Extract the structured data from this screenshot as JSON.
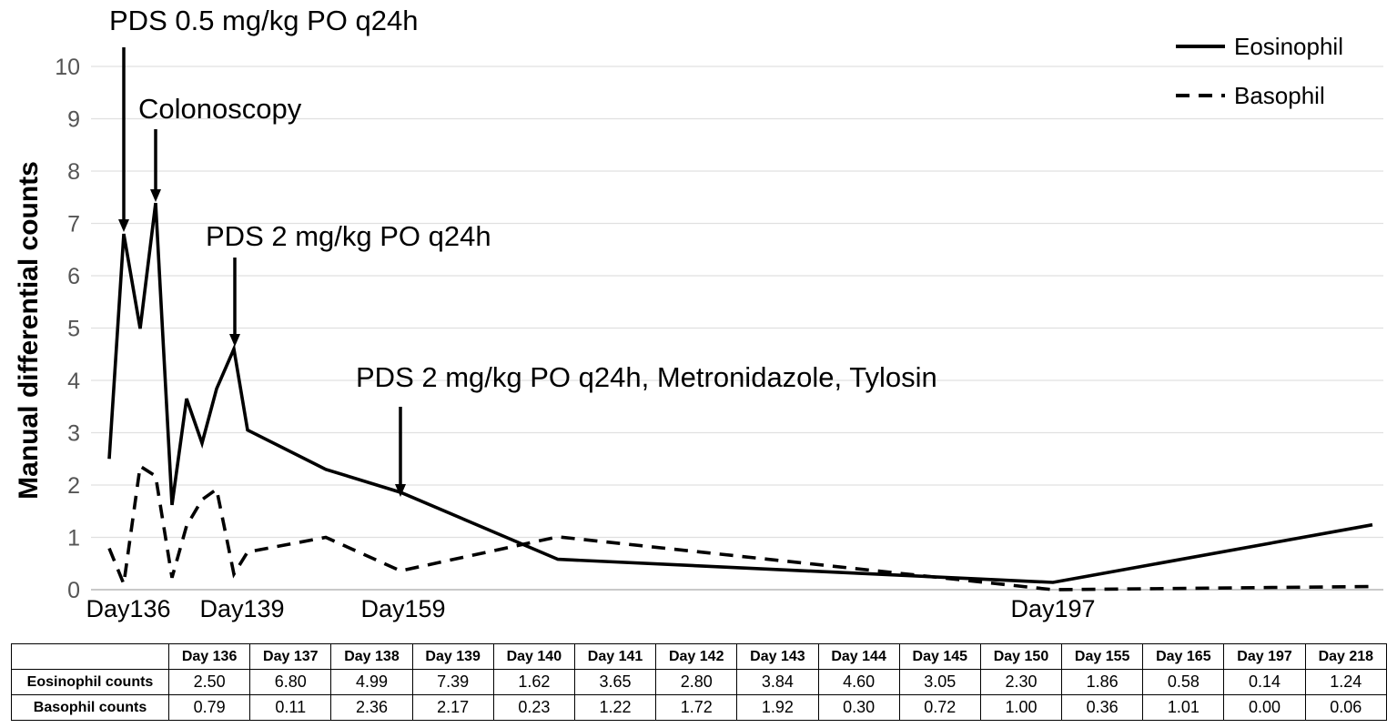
{
  "chart_data": {
    "type": "line",
    "ylabel": "Manual differential counts",
    "ylim": [
      0,
      10
    ],
    "yticks": [
      "0",
      "1",
      "2",
      "3",
      "4",
      "5",
      "6",
      "7",
      "8",
      "9",
      "10"
    ],
    "x_labels": [
      "Day136",
      "Day139",
      "Day159",
      "Day197"
    ],
    "categories": [
      "Day 136",
      "Day 137",
      "Day 138",
      "Day 139",
      "Day 140",
      "Day 141",
      "Day 142",
      "Day 143",
      "Day 144",
      "Day 145",
      "Day 150",
      "Day 155",
      "Day 165",
      "Day 197",
      "Day 218"
    ],
    "series": [
      {
        "name": "Eosinophil",
        "style": "solid",
        "color": "#000000",
        "values": [
          2.5,
          6.8,
          4.99,
          7.39,
          1.62,
          3.65,
          2.8,
          3.84,
          4.6,
          3.05,
          2.3,
          1.86,
          0.58,
          0.14,
          1.24
        ]
      },
      {
        "name": "Basophil",
        "style": "dashed",
        "color": "#000000",
        "values": [
          0.79,
          0.11,
          2.36,
          2.17,
          0.23,
          1.22,
          1.72,
          1.92,
          0.3,
          0.72,
          1.0,
          0.36,
          1.01,
          0.0,
          0.06
        ]
      }
    ],
    "annotations": [
      {
        "text": "PDS 0.5 mg/kg PO q24h",
        "at": "Day 137"
      },
      {
        "text": "Colonoscopy",
        "at": "Day 139"
      },
      {
        "text": "PDS 2 mg/kg PO q24h",
        "at": "Day 144"
      },
      {
        "text": "PDS 2 mg/kg PO q24h, Metronidazole, Tylosin",
        "at": "Day 155"
      }
    ],
    "legend": {
      "position": "top-right",
      "entries": [
        "Eosinophil",
        "Basophil"
      ]
    },
    "grid": true
  },
  "table": {
    "headers": [
      "",
      "Day 136",
      "Day 137",
      "Day 138",
      "Day 139",
      "Day 140",
      "Day 141",
      "Day 142",
      "Day 143",
      "Day 144",
      "Day 145",
      "Day 150",
      "Day 155",
      "Day 165",
      "Day 197",
      "Day 218"
    ],
    "rows": [
      {
        "label": "Eosinophil counts",
        "cells": [
          "2.50",
          "6.80",
          "4.99",
          "7.39",
          "1.62",
          "3.65",
          "2.80",
          "3.84",
          "4.60",
          "3.05",
          "2.30",
          "1.86",
          "0.58",
          "0.14",
          "1.24"
        ]
      },
      {
        "label": "Basophil counts",
        "cells": [
          "0.79",
          "0.11",
          "2.36",
          "2.17",
          "0.23",
          "1.22",
          "1.72",
          "1.92",
          "0.30",
          "0.72",
          "1.00",
          "0.36",
          "1.01",
          "0.00",
          "0.06"
        ]
      }
    ]
  }
}
